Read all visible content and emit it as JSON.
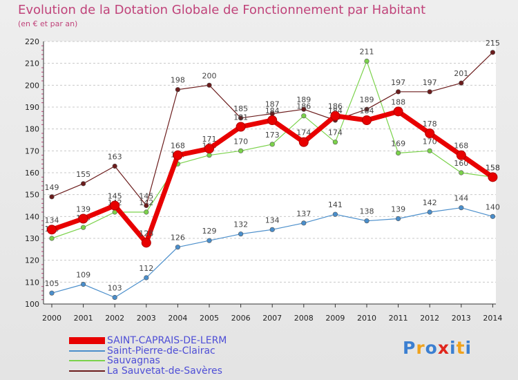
{
  "chart_data": {
    "type": "line",
    "title": "Evolution de la Dotation Globale de Fonctionnement par Habitant",
    "subtitle": "(en € et par an)",
    "xlabel": "",
    "ylabel": "",
    "ylim": [
      100,
      220
    ],
    "yticks": [
      100,
      110,
      120,
      130,
      140,
      150,
      160,
      170,
      180,
      190,
      200,
      210,
      220
    ],
    "categories": [
      "2000",
      "2001",
      "2002",
      "2003",
      "2004",
      "2005",
      "2006",
      "2007",
      "2008",
      "2009",
      "2010",
      "2011",
      "2012",
      "2013",
      "2014"
    ],
    "grid": "horizontal dashed",
    "legend": "bottom-left",
    "series": [
      {
        "name": "SAINT-CAPRAIS-DE-LERM",
        "color": "#e80000",
        "values": [
          134,
          139,
          145,
          128,
          168,
          171,
          181,
          184,
          174,
          186,
          184,
          188,
          178,
          168,
          158
        ]
      },
      {
        "name": "Saint-Pierre-de-Clairac",
        "color": "#4a8ecb",
        "values": [
          105,
          109,
          103,
          112,
          126,
          129,
          132,
          134,
          137,
          141,
          138,
          139,
          142,
          144,
          140
        ]
      },
      {
        "name": "Sauvagnas",
        "color": "#7bd24b",
        "values": [
          130,
          135,
          142,
          142,
          164,
          168,
          170,
          173,
          186,
          174,
          211,
          169,
          170,
          160,
          158
        ]
      },
      {
        "name": "La Sauvetat-de-Savères",
        "color": "#6b1c1c",
        "values": [
          149,
          155,
          163,
          145,
          198,
          200,
          185,
          187,
          189,
          184,
          189,
          197,
          197,
          201,
          215
        ]
      }
    ]
  },
  "branding": {
    "logo_letters": [
      "P",
      "r",
      "o",
      "x",
      "i",
      "t",
      "i"
    ]
  }
}
